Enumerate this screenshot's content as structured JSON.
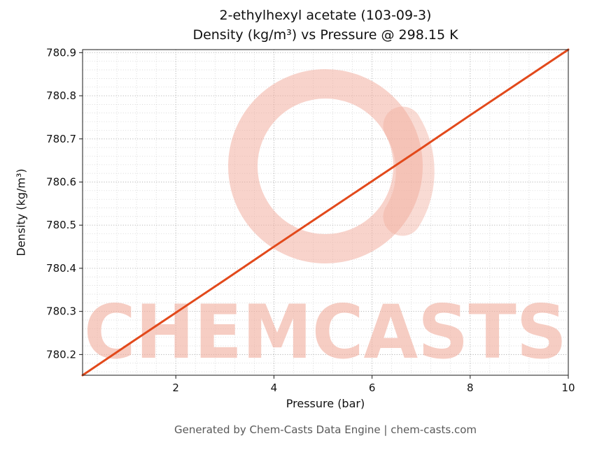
{
  "title": {
    "line1": "2-ethylhexyl acetate (103-09-3)",
    "line2": "Density (kg/m³) vs Pressure @ 298.15 K"
  },
  "axis": {
    "xlabel": "Pressure (bar)",
    "ylabel": "Density (kg/m³)"
  },
  "watermark": {
    "text": "CHEMCASTS"
  },
  "footer": {
    "text": "Generated by Chem-Casts Data Engine | chem-casts.com"
  },
  "colors": {
    "line": "#e2491b",
    "watermark": "#f2afa0",
    "grid_minor": "#cccccc",
    "grid_major": "#aaaaaa",
    "spine": "#1a1a1a",
    "tick_text": "#111111",
    "footer_text": "#595959"
  },
  "chart_data": {
    "type": "line",
    "title": "2-ethylhexyl acetate (103-09-3) Density (kg/m³) vs Pressure @ 298.15 K",
    "xlabel": "Pressure (bar)",
    "ylabel": "Density (kg/m³)",
    "xlim": [
      0.1,
      10
    ],
    "ylim": [
      780.152,
      780.907
    ],
    "x_ticks": [
      2,
      4,
      6,
      8,
      10
    ],
    "y_ticks": [
      780.2,
      780.3,
      780.4,
      780.5,
      780.6,
      780.7,
      780.8,
      780.9
    ],
    "grid": true,
    "legend": false,
    "x": [
      0.1,
      1,
      2,
      3,
      4,
      5,
      6,
      7,
      8,
      9,
      10
    ],
    "series": [
      {
        "name": "Density",
        "values": [
          780.152,
          780.221,
          780.297,
          780.373,
          780.45,
          780.526,
          780.602,
          780.678,
          780.755,
          780.831,
          780.907
        ]
      }
    ]
  }
}
